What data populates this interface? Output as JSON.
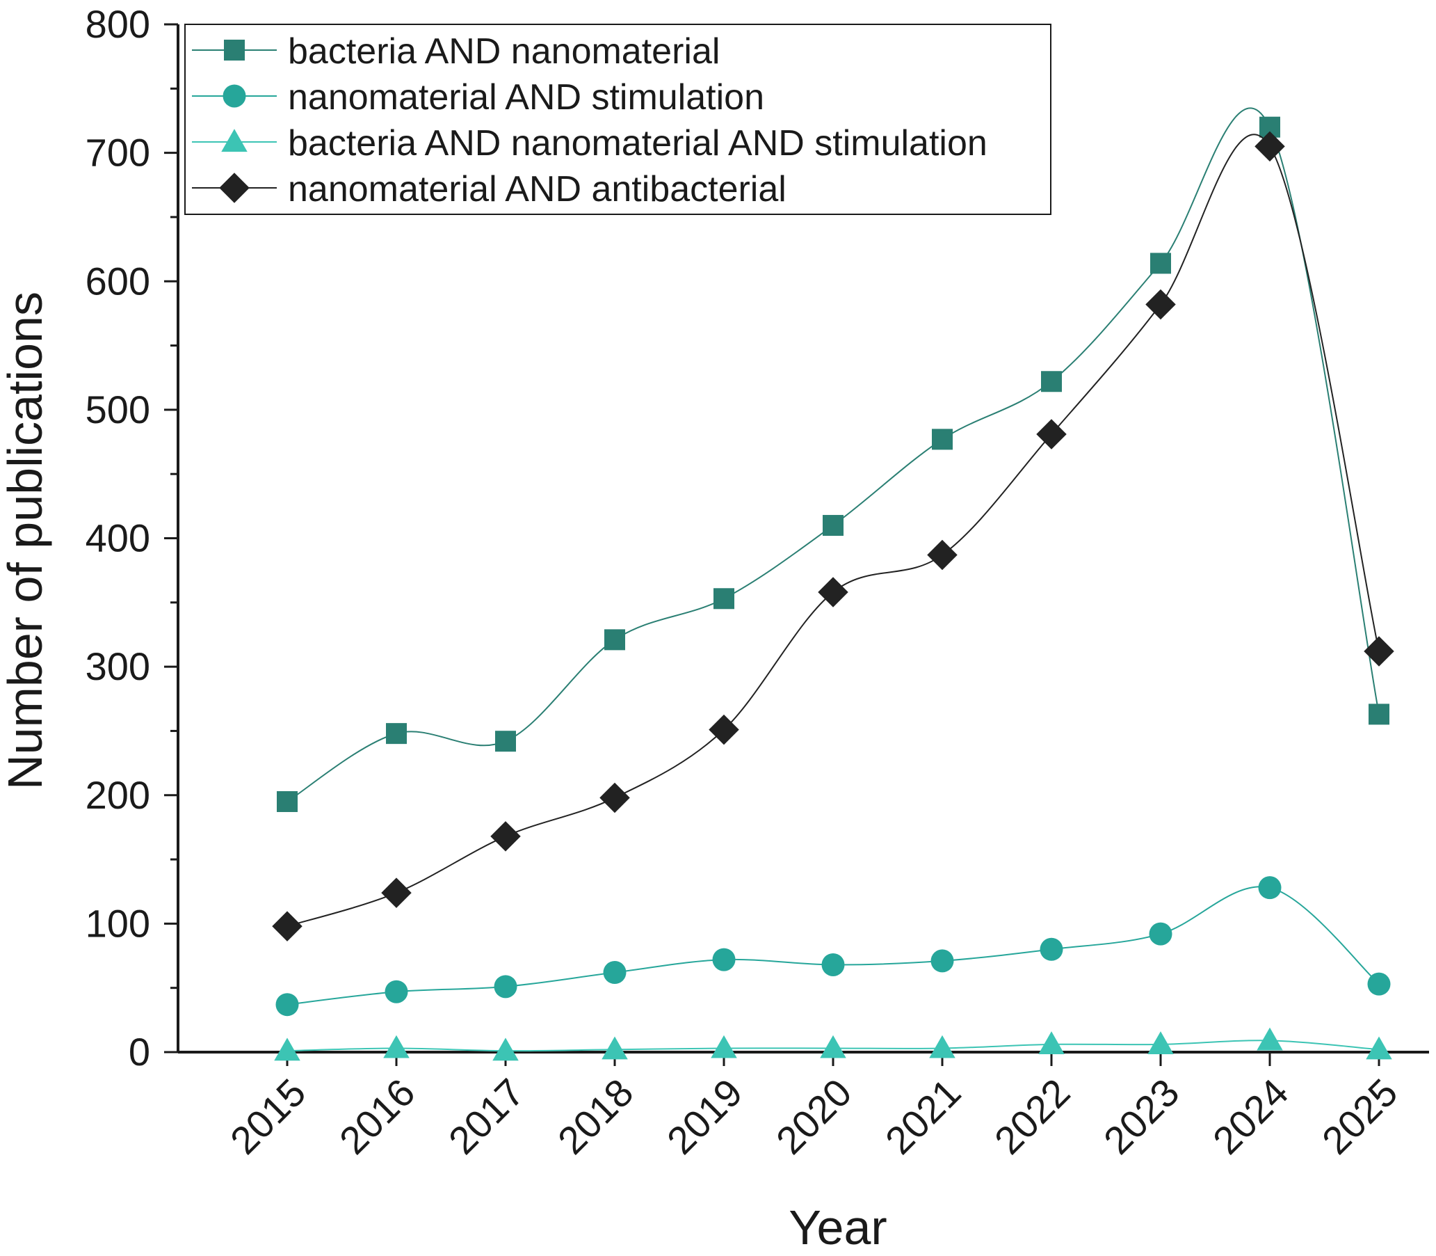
{
  "chart_data": {
    "type": "line",
    "title": "",
    "xlabel": "Year",
    "ylabel": "Number of publications",
    "categories": [
      "2015",
      "2016",
      "2017",
      "2018",
      "2019",
      "2020",
      "2021",
      "2022",
      "2023",
      "2024",
      "2025"
    ],
    "ylim": [
      0,
      800
    ],
    "yticks": [
      "0",
      "100",
      "200",
      "300",
      "400",
      "500",
      "600",
      "700",
      "800"
    ],
    "grid": false,
    "legend_position": "top-left",
    "series": [
      {
        "name": "bacteria AND nanomaterial",
        "marker": "square",
        "color": "#2a7f73",
        "values": [
          195,
          248,
          242,
          321,
          353,
          410,
          477,
          522,
          614,
          720,
          263
        ]
      },
      {
        "name": "nanomaterial AND stimulation",
        "marker": "circle",
        "color": "#26a69a",
        "values": [
          37,
          47,
          51,
          62,
          72,
          68,
          71,
          80,
          92,
          128,
          53
        ]
      },
      {
        "name": "bacteria AND nanomaterial AND stimulation",
        "marker": "triangle",
        "color": "#3cc4b4",
        "values": [
          1,
          3,
          1,
          2,
          3,
          3,
          3,
          6,
          6,
          9,
          2
        ]
      },
      {
        "name": "nanomaterial AND antibacterial",
        "marker": "diamond",
        "color": "#222222",
        "values": [
          98,
          124,
          168,
          198,
          251,
          358,
          387,
          481,
          582,
          705,
          312
        ]
      }
    ]
  }
}
